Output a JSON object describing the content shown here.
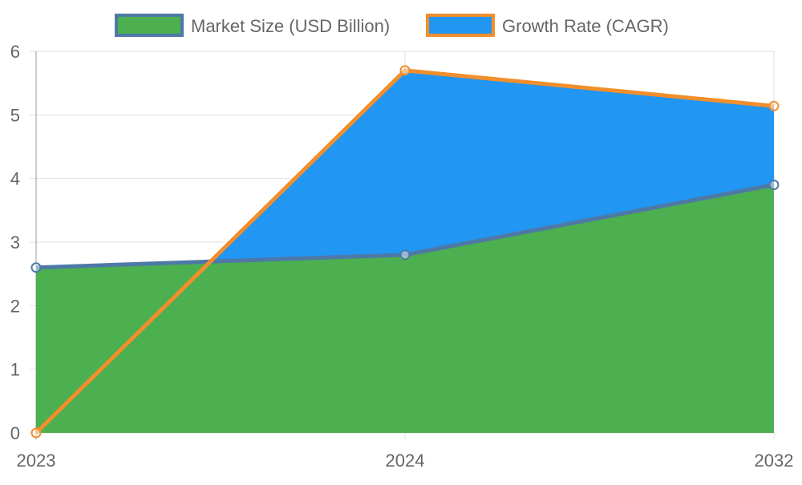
{
  "chart_data": {
    "type": "area",
    "categories": [
      "2023",
      "2024",
      "2032"
    ],
    "series": [
      {
        "name": "Market Size (USD Billion)",
        "values": [
          2.6,
          2.8,
          3.9
        ],
        "fill_color": "#4caf50",
        "line_color": "#4e79a7"
      },
      {
        "name": "Growth Rate (CAGR)",
        "values": [
          0,
          5.7,
          5.14
        ],
        "fill_color": "#2196f3",
        "line_color": "#f28e2b"
      }
    ],
    "ylim": [
      0,
      6
    ],
    "yticks": [
      "0",
      "1",
      "2",
      "3",
      "4",
      "5",
      "6"
    ],
    "grid": true,
    "legend": "top"
  }
}
